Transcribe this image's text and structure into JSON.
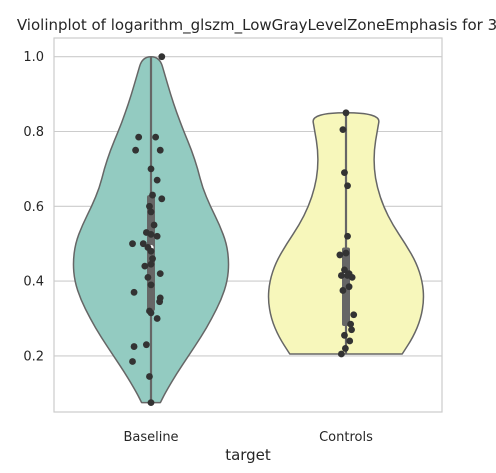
{
  "chart_data": {
    "type": "violin",
    "title": "Violinplot of logarithm_glszm_LowGrayLevelZoneEmphasis for 3",
    "xlabel": "target",
    "ylabel": "",
    "categories": [
      "Baseline",
      "Controls"
    ],
    "ylim": [
      0.05,
      1.05
    ],
    "yticks": [
      0.2,
      0.4,
      0.6,
      0.8,
      1.0
    ],
    "ytick_labels": [
      "0.2",
      "0.4",
      "0.6",
      "0.8",
      "1.0"
    ],
    "grid": "horizontal",
    "colors": {
      "Baseline": "#93cbc1",
      "Controls": "#f7f7bb",
      "outline": "#666666",
      "points": "#333333",
      "grid": "#cccccc"
    },
    "series": [
      {
        "category": "Baseline",
        "quartiles": {
          "q1": 0.32,
          "median": 0.49,
          "q3": 0.63
        },
        "range": [
          0.07,
          1.0
        ],
        "density_profile": [
          [
            0.075,
            0.12
          ],
          [
            0.1,
            0.18
          ],
          [
            0.15,
            0.32
          ],
          [
            0.2,
            0.48
          ],
          [
            0.25,
            0.64
          ],
          [
            0.3,
            0.78
          ],
          [
            0.35,
            0.9
          ],
          [
            0.4,
            0.98
          ],
          [
            0.45,
            1.0
          ],
          [
            0.5,
            0.97
          ],
          [
            0.55,
            0.88
          ],
          [
            0.6,
            0.76
          ],
          [
            0.65,
            0.66
          ],
          [
            0.7,
            0.6
          ],
          [
            0.75,
            0.52
          ],
          [
            0.8,
            0.42
          ],
          [
            0.85,
            0.33
          ],
          [
            0.9,
            0.25
          ],
          [
            0.95,
            0.18
          ],
          [
            1.0,
            0.11
          ]
        ],
        "points": [
          {
            "j": 0.35,
            "y": 1.0
          },
          {
            "j": -0.4,
            "y": 0.785
          },
          {
            "j": -0.5,
            "y": 0.75
          },
          {
            "j": 0.3,
            "y": 0.75
          },
          {
            "j": 0.15,
            "y": 0.785
          },
          {
            "j": 0.0,
            "y": 0.7
          },
          {
            "j": 0.2,
            "y": 0.67
          },
          {
            "j": 0.35,
            "y": 0.62
          },
          {
            "j": 0.05,
            "y": 0.63
          },
          {
            "j": -0.05,
            "y": 0.6
          },
          {
            "j": 0.0,
            "y": 0.585
          },
          {
            "j": 0.1,
            "y": 0.55
          },
          {
            "j": -0.15,
            "y": 0.53
          },
          {
            "j": 0.0,
            "y": 0.525
          },
          {
            "j": 0.2,
            "y": 0.52
          },
          {
            "j": -0.6,
            "y": 0.5
          },
          {
            "j": -0.25,
            "y": 0.5
          },
          {
            "j": -0.1,
            "y": 0.49
          },
          {
            "j": 0.0,
            "y": 0.48
          },
          {
            "j": 0.05,
            "y": 0.46
          },
          {
            "j": 0.0,
            "y": 0.445
          },
          {
            "j": -0.2,
            "y": 0.44
          },
          {
            "j": 0.3,
            "y": 0.42
          },
          {
            "j": -0.1,
            "y": 0.41
          },
          {
            "j": 0.0,
            "y": 0.39
          },
          {
            "j": -0.55,
            "y": 0.37
          },
          {
            "j": 0.3,
            "y": 0.355
          },
          {
            "j": 0.28,
            "y": 0.345
          },
          {
            "j": -0.05,
            "y": 0.32
          },
          {
            "j": 0.0,
            "y": 0.315
          },
          {
            "j": 0.2,
            "y": 0.3
          },
          {
            "j": -0.55,
            "y": 0.225
          },
          {
            "j": -0.15,
            "y": 0.23
          },
          {
            "j": -0.6,
            "y": 0.185
          },
          {
            "j": -0.05,
            "y": 0.145
          },
          {
            "j": 0.0,
            "y": 0.075
          }
        ]
      },
      {
        "category": "Controls",
        "quartiles": {
          "q1": 0.28,
          "median": 0.42,
          "q3": 0.49
        },
        "range": [
          0.205,
          0.85
        ],
        "density_profile": [
          [
            0.205,
            0.72
          ],
          [
            0.25,
            0.86
          ],
          [
            0.3,
            0.96
          ],
          [
            0.35,
            1.0
          ],
          [
            0.4,
            0.98
          ],
          [
            0.45,
            0.9
          ],
          [
            0.5,
            0.76
          ],
          [
            0.55,
            0.6
          ],
          [
            0.6,
            0.48
          ],
          [
            0.65,
            0.4
          ],
          [
            0.7,
            0.36
          ],
          [
            0.75,
            0.36
          ],
          [
            0.8,
            0.4
          ],
          [
            0.85,
            0.44
          ]
        ],
        "points": [
          {
            "j": 0.0,
            "y": 0.85
          },
          {
            "j": -0.1,
            "y": 0.805
          },
          {
            "j": -0.05,
            "y": 0.69
          },
          {
            "j": 0.05,
            "y": 0.655
          },
          {
            "j": 0.05,
            "y": 0.52
          },
          {
            "j": 0.0,
            "y": 0.475
          },
          {
            "j": -0.2,
            "y": 0.47
          },
          {
            "j": -0.05,
            "y": 0.43
          },
          {
            "j": 0.1,
            "y": 0.42
          },
          {
            "j": -0.15,
            "y": 0.415
          },
          {
            "j": 0.05,
            "y": 0.415
          },
          {
            "j": 0.2,
            "y": 0.41
          },
          {
            "j": 0.1,
            "y": 0.385
          },
          {
            "j": -0.1,
            "y": 0.375
          },
          {
            "j": 0.25,
            "y": 0.31
          },
          {
            "j": 0.15,
            "y": 0.285
          },
          {
            "j": 0.18,
            "y": 0.27
          },
          {
            "j": -0.05,
            "y": 0.255
          },
          {
            "j": 0.12,
            "y": 0.24
          },
          {
            "j": -0.02,
            "y": 0.22
          },
          {
            "j": -0.15,
            "y": 0.205
          }
        ]
      }
    ]
  }
}
